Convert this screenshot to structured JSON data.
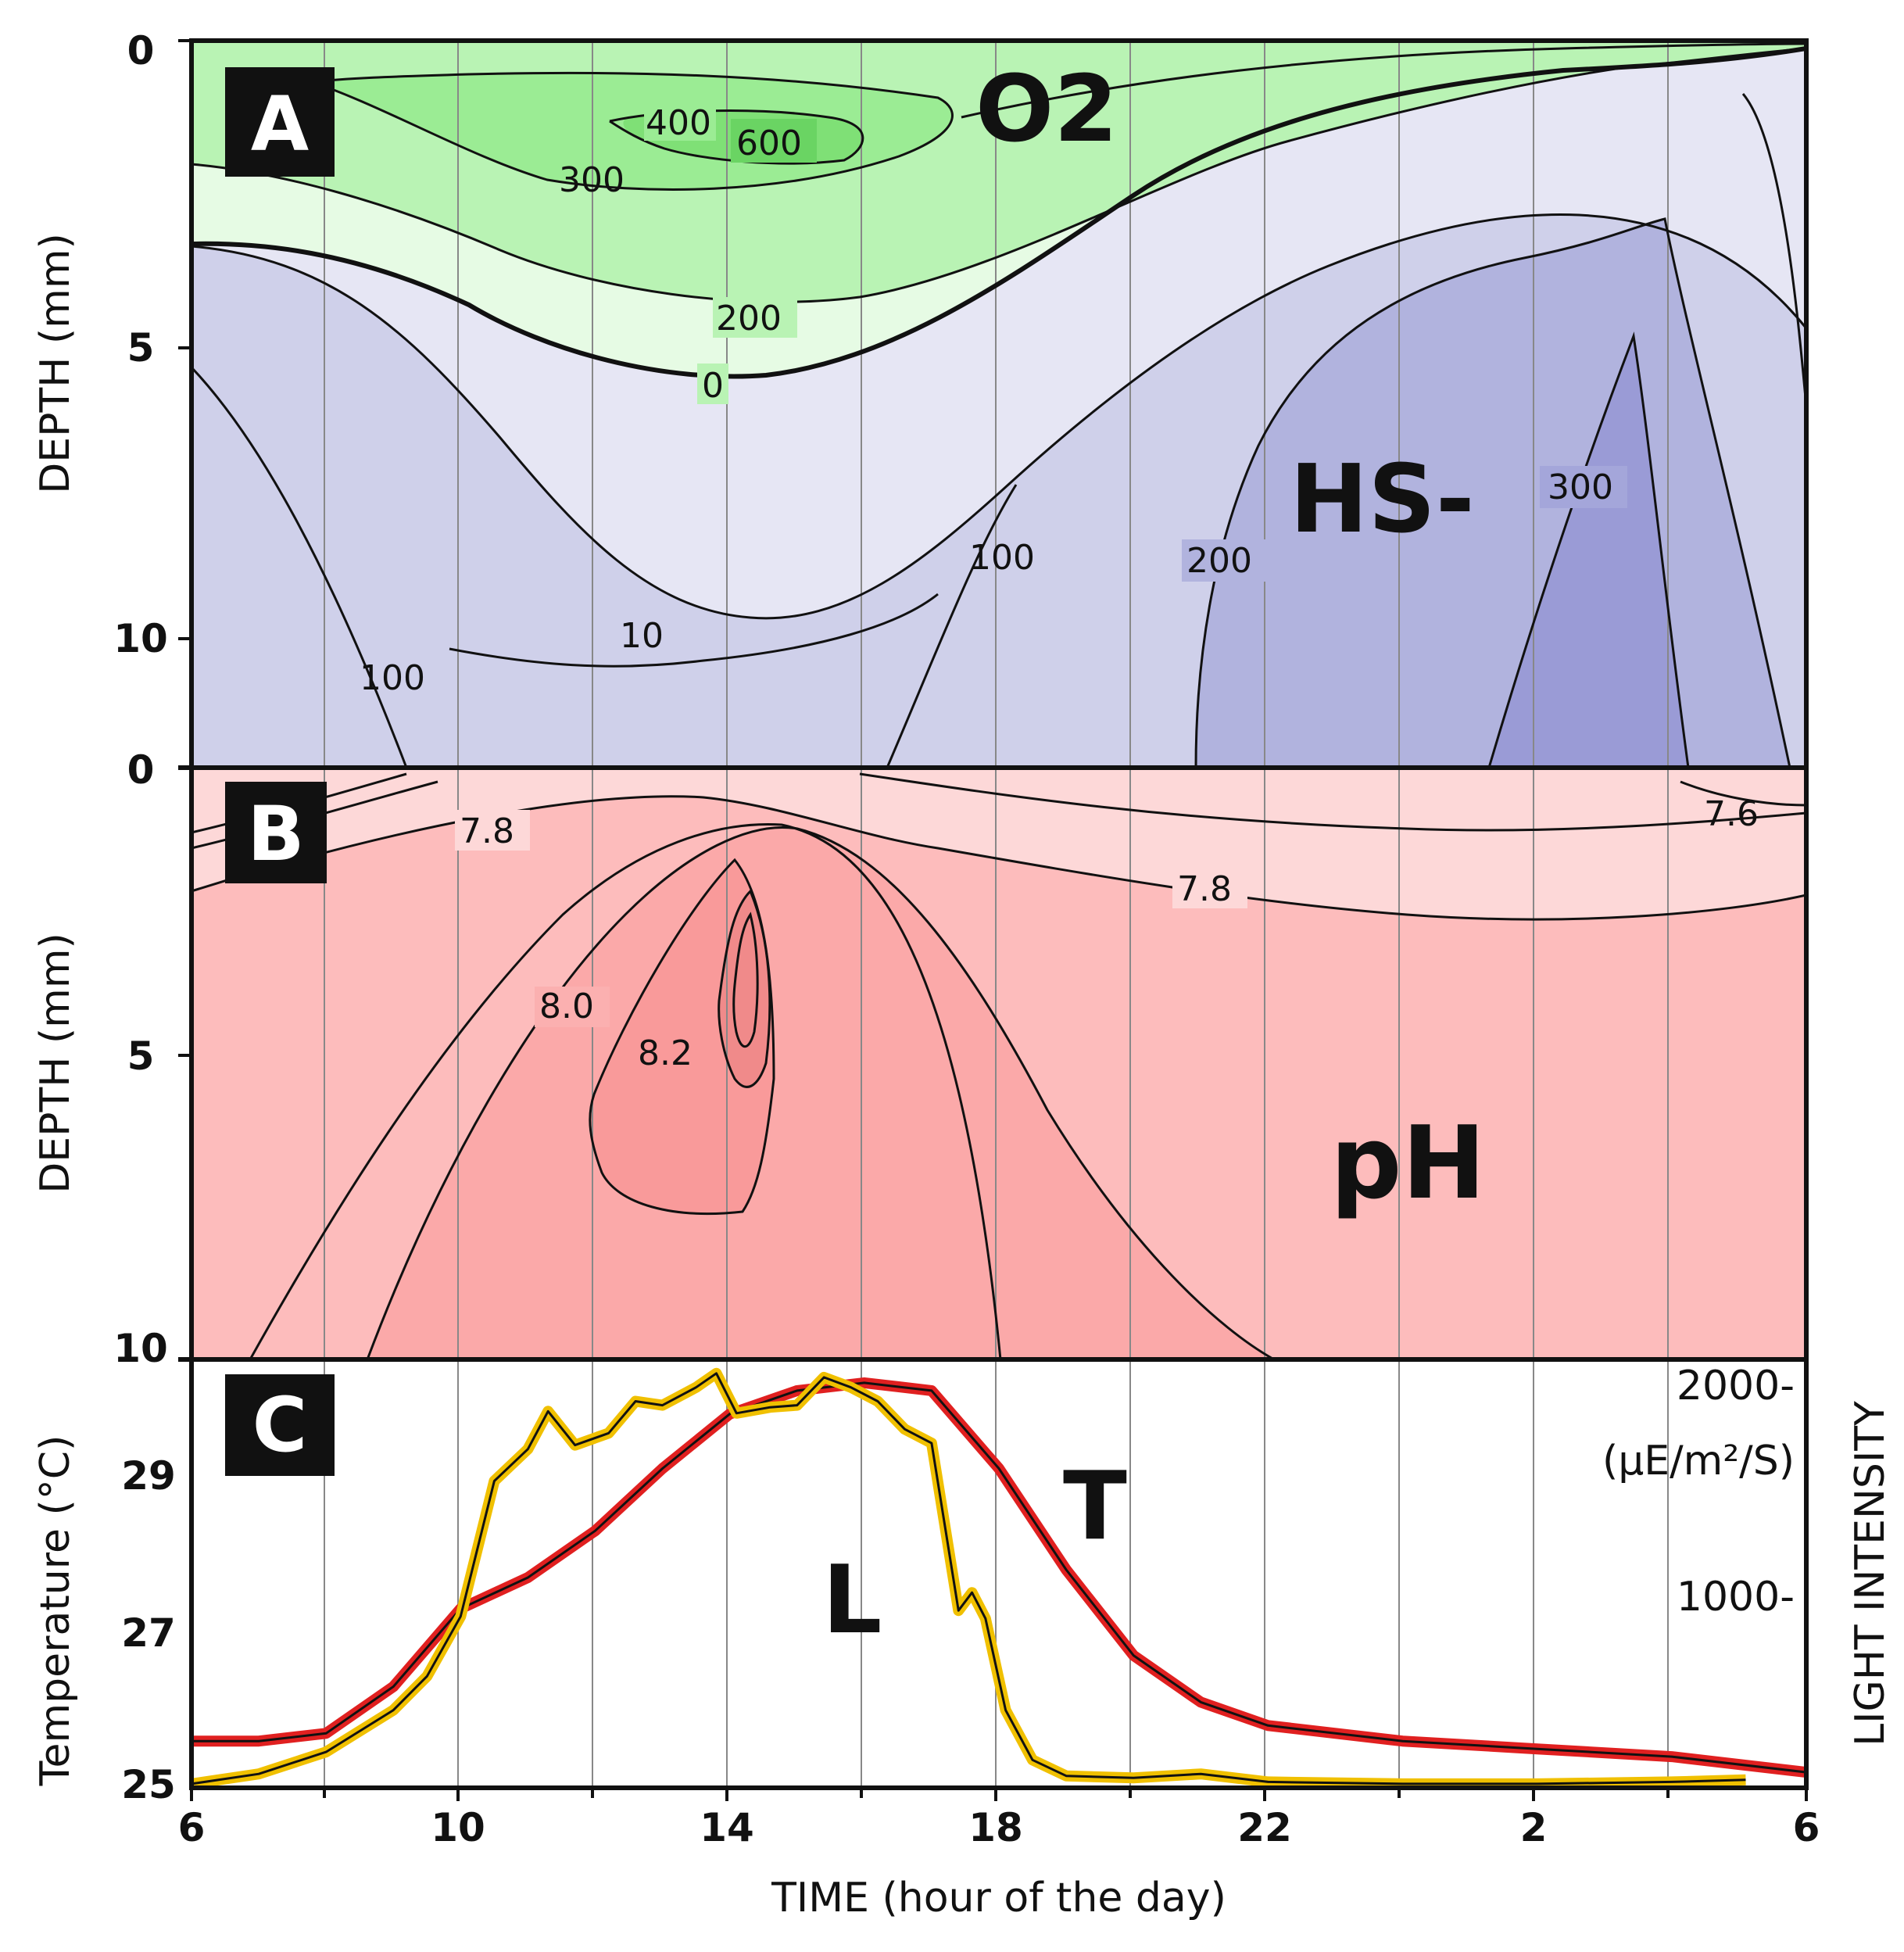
{
  "chart_data": [
    {
      "panel": "A",
      "type": "heatmap",
      "x_axis": {
        "ticks": [],
        "range_hours": [
          6,
          30
        ]
      },
      "y_axis": {
        "label": "DEPTH (mm)",
        "ticks": [
          "0",
          "5",
          "10"
        ],
        "range": [
          0,
          12
        ]
      },
      "species_labels": [
        "O2",
        "HS-"
      ],
      "oxygen_contour_labels": [
        "400",
        "600",
        "300",
        "200",
        "0"
      ],
      "sulfide_contour_labels": [
        "10",
        "100",
        "100",
        "200",
        "300"
      ]
    },
    {
      "panel": "B",
      "type": "heatmap",
      "y_axis": {
        "label": "DEPTH (mm)",
        "ticks": [
          "0",
          "5",
          "10"
        ],
        "range": [
          0,
          10
        ]
      },
      "variable_label": "pH",
      "contour_labels": [
        "7.8",
        "7.8",
        "7.6",
        "8.0",
        "8.2"
      ]
    },
    {
      "panel": "C",
      "type": "line",
      "x_axis": {
        "label": "TIME (hour of the day)",
        "ticks": [
          "6",
          "10",
          "14",
          "18",
          "22",
          "2",
          "6"
        ],
        "range_hours": [
          6,
          30
        ]
      },
      "y_axis_left": {
        "label": "Temperature (°C)",
        "ticks": [
          "25",
          "27",
          "29"
        ],
        "range": [
          25,
          30.5
        ]
      },
      "y_axis_right": {
        "label": "LIGHT INTENSITY",
        "ticks": [
          "2000-",
          "1000-"
        ],
        "unit": "(µE/m²/S)",
        "range": [
          0,
          2150
        ]
      },
      "series": [
        {
          "name": "T",
          "color": "#e02020",
          "x": [
            6,
            7,
            8,
            9,
            9.5,
            10,
            11,
            12,
            13,
            14,
            15,
            16,
            17,
            18,
            19,
            20,
            21,
            22,
            24,
            26,
            28,
            30
          ],
          "values": [
            25.6,
            25.6,
            25.7,
            26.3,
            26.8,
            27.3,
            27.7,
            28.3,
            29.1,
            29.8,
            30.1,
            30.2,
            30.1,
            29.1,
            27.8,
            26.7,
            26.1,
            25.8,
            25.6,
            25.5,
            25.4,
            25.2
          ]
        },
        {
          "name": "L",
          "color": "#f0c000",
          "x": [
            6,
            7,
            8,
            9,
            9.5,
            10,
            10.5,
            11,
            11.3,
            11.7,
            12.2,
            12.6,
            13,
            13.5,
            13.8,
            14.1,
            14.6,
            15,
            15.4,
            15.8,
            16.2,
            16.6,
            17,
            17.4,
            17.6,
            17.8,
            18.1,
            18.5,
            19,
            20,
            21,
            22,
            24,
            26,
            28,
            29.1
          ],
          "values": [
            20,
            70,
            180,
            390,
            560,
            860,
            1540,
            1700,
            1890,
            1720,
            1780,
            1940,
            1920,
            2010,
            2080,
            1880,
            1910,
            1920,
            2060,
            2010,
            1940,
            1800,
            1730,
            890,
            980,
            850,
            390,
            140,
            60,
            50,
            70,
            30,
            20,
            20,
            30,
            40
          ]
        }
      ],
      "series_labels": [
        "T",
        "L"
      ]
    }
  ]
}
